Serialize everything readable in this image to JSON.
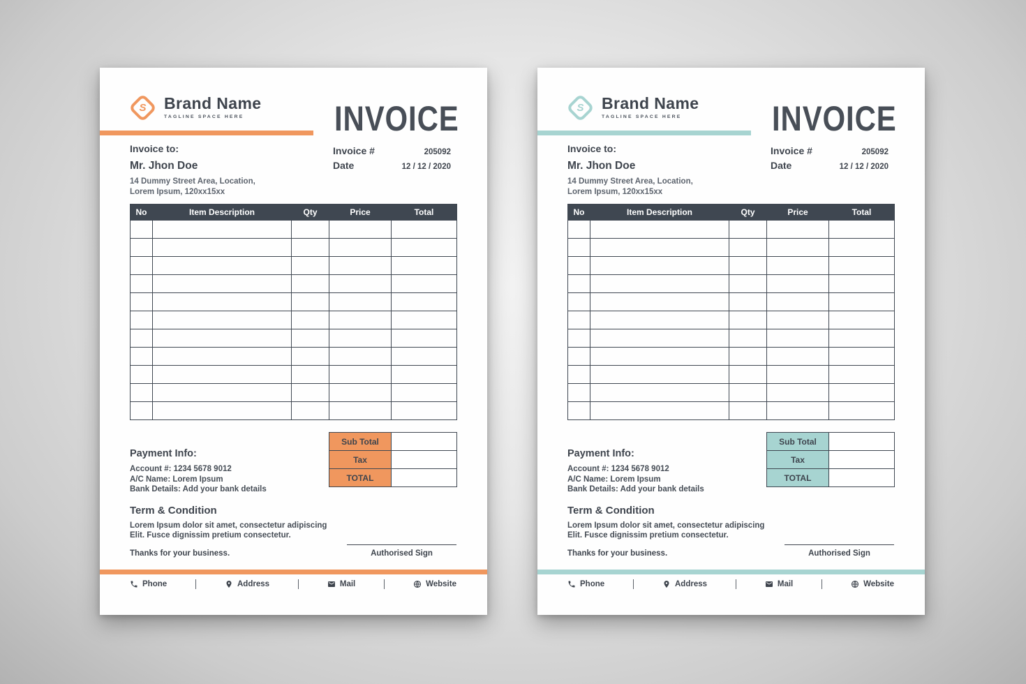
{
  "colors": {
    "orange": "#F0975E",
    "teal": "#A7D4D1",
    "dark_slate": "#3F4751"
  },
  "brand": {
    "name": "Brand Name",
    "tagline": "TAGLINE SPACE HERE",
    "logo_letter": "S"
  },
  "header": {
    "title": "INVOICE"
  },
  "bill_to": {
    "label": "Invoice to:",
    "name": "Mr. Jhon Doe",
    "address_line1": "14 Dummy Street Area, Location,",
    "address_line2": "Lorem Ipsum, 120xx15xx"
  },
  "meta": {
    "invoice_number_label": "Invoice #",
    "invoice_number": "205092",
    "date_label": "Date",
    "date": "12 / 12 / 2020"
  },
  "table": {
    "columns": [
      "No",
      "Item Description",
      "Qty",
      "Price",
      "Total"
    ],
    "empty_row_count": 11
  },
  "summary": {
    "rows": [
      {
        "label": "Sub Total",
        "value": ""
      },
      {
        "label": "Tax",
        "value": ""
      },
      {
        "label": "TOTAL",
        "value": ""
      }
    ]
  },
  "payment": {
    "heading": "Payment Info:",
    "account": "Account #: 1234 5678 9012",
    "ac_name": "A/C Name: Lorem Ipsum",
    "bank": "Bank Details: Add your bank details"
  },
  "terms": {
    "heading": "Term & Condition",
    "line1": "Lorem Ipsum dolor sit amet, consectetur adipiscing",
    "line2": "Elit. Fusce dignissim pretium consectetur."
  },
  "closing": {
    "thanks": "Thanks for your business.",
    "sign": "Authorised Sign"
  },
  "footer": {
    "items": [
      {
        "icon": "phone-icon",
        "label": "Phone"
      },
      {
        "icon": "pin-icon",
        "label": "Address"
      },
      {
        "icon": "mail-icon",
        "label": "Mail"
      },
      {
        "icon": "globe-icon",
        "label": "Website"
      }
    ]
  }
}
